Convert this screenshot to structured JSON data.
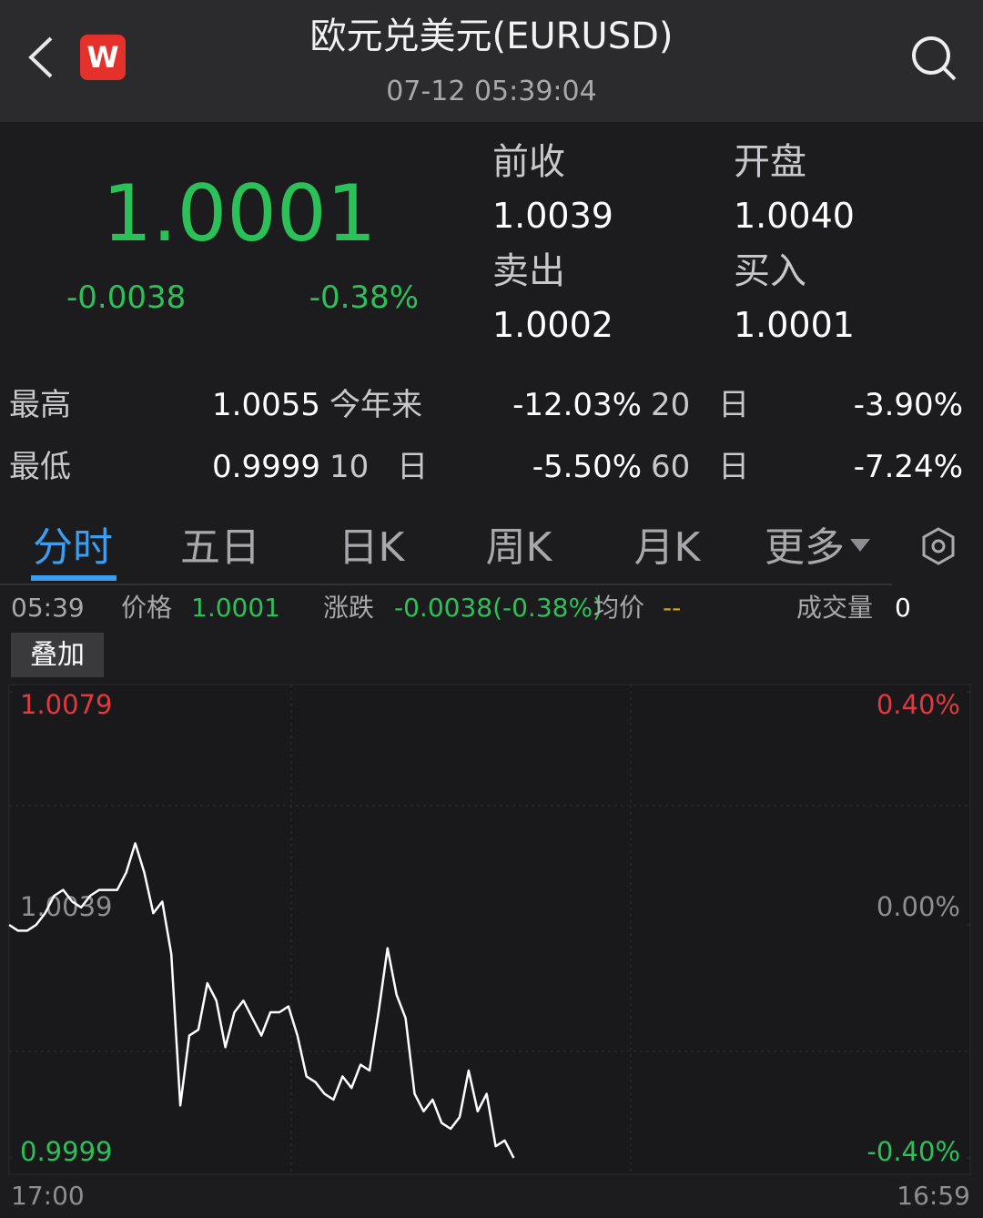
{
  "header": {
    "logo": "W",
    "title": "欧元兑美元(EURUSD)",
    "time": "07-12 05:39:04"
  },
  "quote": {
    "price": "1.0001",
    "change": "-0.0038",
    "change_pct": "-0.38%",
    "fields": [
      {
        "label": "前收",
        "value": "1.0039"
      },
      {
        "label": "开盘",
        "value": "1.0040"
      },
      {
        "label": "卖出",
        "value": "1.0002"
      },
      {
        "label": "买入",
        "value": "1.0001"
      }
    ]
  },
  "stats": [
    [
      {
        "label": "最高",
        "value": "1.0055"
      },
      {
        "label": "今年来",
        "value": "-12.03%"
      },
      {
        "label": "20 日",
        "value": "-3.90%"
      }
    ],
    [
      {
        "label": "最低",
        "value": "0.9999"
      },
      {
        "label": "10 日",
        "value": "-5.50%"
      },
      {
        "label": "60 日",
        "value": "-7.24%"
      }
    ]
  ],
  "tabs": [
    "分时",
    "五日",
    "日K",
    "周K",
    "月K",
    "更多"
  ],
  "info": {
    "time": "05:39",
    "price_label": "价格",
    "price": "1.0001",
    "change_label": "涨跌",
    "change": "-0.0038(-0.38%)",
    "avg_label": "均价",
    "avg": "--",
    "volume_label": "成交量",
    "volume": "0"
  },
  "overlay_button": "叠加",
  "chart": {
    "type": "line",
    "color": "#ffffff",
    "values": [
      1.0039,
      1.0038,
      1.0038,
      1.0039,
      1.0041,
      1.0044,
      1.0045,
      1.0043,
      1.0042,
      1.0044,
      1.0045,
      1.0045,
      1.0045,
      1.0048,
      1.0053,
      1.0048,
      1.0041,
      1.0043,
      1.0034,
      1.0008,
      1.002,
      1.0021,
      1.0029,
      1.0026,
      1.0018,
      1.0024,
      1.0026,
      1.0023,
      1.002,
      1.0024,
      1.0024,
      1.0025,
      1.002,
      1.0013,
      1.0012,
      1.001,
      1.0009,
      1.0013,
      1.0011,
      1.0015,
      1.0014,
      1.0024,
      1.0035,
      1.0027,
      1.0023,
      1.001,
      1.0007,
      1.0009,
      1.0005,
      1.0004,
      1.0006,
      1.0014,
      1.0007,
      1.001,
      1.0001,
      1.0002,
      0.9999
    ],
    "ylim": [
      0.9999,
      1.0079
    ],
    "yticks": [
      1.0079,
      1.0039,
      0.9999
    ],
    "y2lim": [
      -0.4,
      0.4
    ],
    "y2ticks": [
      {
        "value": 0.4,
        "label": "0.40%"
      },
      {
        "value": 0,
        "label": "0.00%"
      },
      {
        "value": -0.4,
        "label": "-0.40%"
      }
    ],
    "x_start": "17:00",
    "x_end": "16:59"
  }
}
